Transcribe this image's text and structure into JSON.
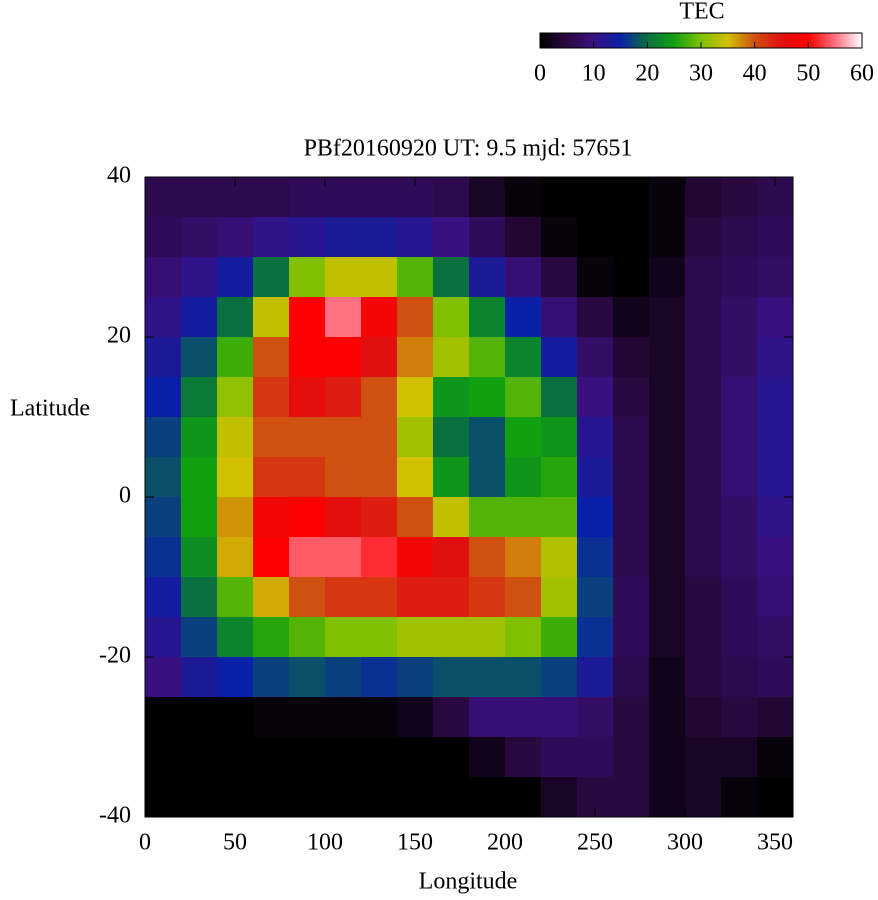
{
  "chart_data": {
    "type": "heatmap",
    "title": "PBf20160920  UT: 9.5  mjd: 57651",
    "xlabel": "Longitude",
    "ylabel": "Latitude",
    "colorbar_label": "TEC",
    "x": [
      10,
      30,
      50,
      70,
      90,
      110,
      130,
      150,
      170,
      190,
      210,
      230,
      250,
      270,
      290,
      310,
      330,
      350
    ],
    "y": [
      37.5,
      32.5,
      27.5,
      22.5,
      17.5,
      12.5,
      7.5,
      2.5,
      -2.5,
      -7.5,
      -12.5,
      -17.5,
      -22.5,
      -27.5,
      -32.5,
      -37.5
    ],
    "values": [
      [
        6,
        6,
        6,
        6,
        7,
        7,
        7,
        7,
        6,
        3,
        1,
        0,
        0,
        0,
        1,
        4,
        5,
        6
      ],
      [
        7,
        8,
        9,
        11,
        12,
        13,
        13,
        12,
        10,
        7,
        4,
        1,
        0,
        0,
        1,
        5,
        6,
        7
      ],
      [
        9,
        11,
        14,
        20,
        30,
        34,
        34,
        28,
        20,
        13,
        9,
        5,
        1,
        0,
        2,
        6,
        7,
        8
      ],
      [
        11,
        14,
        20,
        34,
        50,
        55,
        48,
        40,
        30,
        22,
        15,
        9,
        5,
        2,
        3,
        6,
        8,
        10
      ],
      [
        13,
        18,
        27,
        40,
        50,
        50,
        45,
        38,
        32,
        28,
        22,
        14,
        8,
        4,
        3,
        6,
        8,
        11
      ],
      [
        15,
        21,
        31,
        42,
        46,
        44,
        40,
        35,
        24,
        25,
        28,
        20,
        10,
        5,
        3,
        6,
        9,
        12
      ],
      [
        17,
        24,
        34,
        40,
        40,
        40,
        40,
        32,
        20,
        18,
        25,
        24,
        12,
        6,
        3,
        6,
        9,
        12
      ],
      [
        18,
        25,
        35,
        42,
        42,
        40,
        40,
        35,
        24,
        18,
        24,
        26,
        13,
        6,
        3,
        6,
        9,
        12
      ],
      [
        17,
        25,
        37,
        48,
        50,
        46,
        44,
        40,
        34,
        28,
        28,
        28,
        15,
        6,
        3,
        6,
        8,
        11
      ],
      [
        16,
        23,
        36,
        50,
        54,
        54,
        52,
        48,
        45,
        40,
        38,
        33,
        16,
        6,
        3,
        6,
        8,
        10
      ],
      [
        14,
        20,
        28,
        36,
        40,
        42,
        42,
        44,
        44,
        42,
        40,
        32,
        17,
        7,
        3,
        5,
        7,
        9
      ],
      [
        12,
        17,
        22,
        26,
        28,
        30,
        30,
        32,
        32,
        32,
        30,
        27,
        16,
        7,
        3,
        5,
        7,
        8
      ],
      [
        10,
        13,
        15,
        17,
        18,
        17,
        16,
        17,
        18,
        18,
        18,
        17,
        13,
        6,
        2,
        5,
        6,
        7
      ],
      [
        0,
        0,
        0,
        1,
        1,
        1,
        1,
        2,
        5,
        9,
        9,
        9,
        8,
        5,
        2,
        4,
        5,
        4
      ],
      [
        0,
        0,
        0,
        0,
        0,
        0,
        0,
        0,
        0,
        2,
        5,
        7,
        7,
        5,
        2,
        3,
        3,
        1
      ],
      [
        0,
        0,
        0,
        0,
        0,
        0,
        0,
        0,
        0,
        0,
        0,
        3,
        5,
        5,
        2,
        3,
        1,
        0
      ]
    ],
    "xlim": [
      0,
      360
    ],
    "ylim": [
      -40,
      40
    ],
    "zlim": [
      0,
      60
    ],
    "xticks": [
      0,
      50,
      100,
      150,
      200,
      250,
      300,
      350
    ],
    "yticks": [
      -40,
      -20,
      0,
      20,
      40
    ],
    "zticks": [
      0,
      10,
      20,
      30,
      40,
      50,
      60
    ],
    "colorscale": [
      "#000000",
      "#2a0840",
      "#3a1080",
      "#0a20a8",
      "#0a7040",
      "#10a010",
      "#80c000",
      "#d0c000",
      "#d05010",
      "#e01010",
      "#ff0000",
      "#ff7080",
      "#ffffff"
    ]
  }
}
